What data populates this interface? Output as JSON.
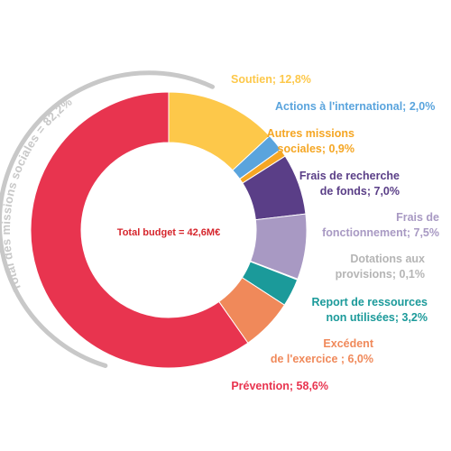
{
  "chart_data": {
    "type": "pie",
    "center_label": "Total budget = 42,6M€",
    "group_label": "Total des missions sociales = 82,2%",
    "slices": [
      {
        "name": "Soutien",
        "value": 12.8,
        "color": "#FDC84A",
        "label_lines": [
          "Soutien; 12,8%"
        ]
      },
      {
        "name": "Actions à l'international",
        "value": 2.0,
        "color": "#5AA4DD",
        "label_lines": [
          "Actions à l'international; 2,0%"
        ]
      },
      {
        "name": "Autres missions sociales",
        "value": 0.9,
        "color": "#F5A623",
        "label_lines": [
          "Autres missions",
          "sociales; 0,9%"
        ]
      },
      {
        "name": "Frais de recherche de fonds",
        "value": 7.0,
        "color": "#5A3E87",
        "label_lines": [
          "Frais de recherche",
          "de fonds; 7,0%"
        ]
      },
      {
        "name": "Frais de fonctionnement",
        "value": 7.5,
        "color": "#A899C3",
        "label_lines": [
          "Frais de",
          "fonctionnement; 7,5%"
        ]
      },
      {
        "name": "Dotations aux provisions",
        "value": 0.1,
        "color": "#B5B5B5",
        "label_lines": [
          "Dotations aux",
          "provisions; 0,1%"
        ]
      },
      {
        "name": "Report de ressources non utilisées",
        "value": 3.2,
        "color": "#1B9A9A",
        "label_lines": [
          "Report de ressources",
          "non utilisées; 3,2%"
        ]
      },
      {
        "name": "Excédent de l'exercice",
        "value": 6.0,
        "color": "#F0895A",
        "label_lines": [
          "Excédent",
          "de l'exercice ; 6,0%"
        ]
      },
      {
        "name": "Prévention",
        "value": 58.6,
        "color": "#E8344F",
        "label_lines": [
          "Prévention; 58,6%"
        ]
      }
    ]
  }
}
